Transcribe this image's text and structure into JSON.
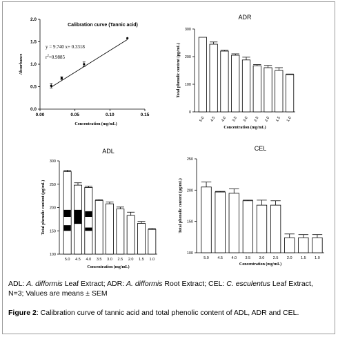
{
  "chart_data": [
    {
      "id": "cal",
      "type": "scatter",
      "title": "Calibration curve (Tannic acid)",
      "xlabel": "Concentration (mg/mL)",
      "ylabel": "Absorbance",
      "xlim": [
        0.0,
        0.15
      ],
      "ylim": [
        0.0,
        2.0
      ],
      "xticks": [
        "0.00",
        "0.05",
        "0.10",
        "0.15"
      ],
      "yticks": [
        "0.0",
        "0.5",
        "1.0",
        "1.5",
        "2.0"
      ],
      "x": [
        0.016,
        0.031,
        0.063,
        0.125
      ],
      "y": [
        0.52,
        0.69,
        1.0,
        1.58
      ],
      "err": [
        0.05,
        0.03,
        0.05,
        0.0
      ],
      "fit_line": [
        [
          0.016,
          0.49
        ],
        [
          0.125,
          1.55
        ]
      ],
      "annotation_1": "y = 9.740 x+ 0.3318",
      "annotation_2_base": "r",
      "annotation_2_sup": "2",
      "annotation_2_rest": "=0.9885"
    },
    {
      "id": "adr",
      "type": "bar",
      "title": "ADR",
      "xlabel": "Concentration (mg/mL)",
      "ylabel": "Total phenolic content (µg/mL)",
      "ylim": [
        0,
        300
      ],
      "yticks": [
        "0",
        "100",
        "200",
        "300"
      ],
      "categories": [
        "5.0",
        "4.5",
        "4.0",
        "3.5",
        "3.0",
        "2.5",
        "2.0",
        "1.5",
        "1.0"
      ],
      "values": [
        270,
        245,
        220,
        205,
        188,
        167,
        160,
        150,
        135
      ],
      "err": [
        0,
        8,
        3,
        5,
        10,
        4,
        8,
        10,
        2
      ]
    },
    {
      "id": "adl",
      "type": "bar",
      "title": "ADL",
      "xlabel": "Concentration (mg/mL)",
      "ylabel": "Total phenolic content (µg/mL)",
      "ylim": [
        100,
        300
      ],
      "yticks": [
        "100",
        "150",
        "200",
        "250",
        "300"
      ],
      "categories": [
        "5.0",
        "4.5",
        "4.0",
        "3.5",
        "3.0",
        "2.5",
        "2.0",
        "1.5",
        "1.0"
      ],
      "values": [
        277,
        248,
        243,
        215,
        208,
        197,
        183,
        166,
        153
      ],
      "err": [
        3,
        5,
        3,
        2,
        4,
        4,
        7,
        4,
        2
      ]
    },
    {
      "id": "cel",
      "type": "bar",
      "title": "CEL",
      "xlabel": "Concentration (mg/mL)",
      "ylabel": "Total phenolic content (µg/mL)",
      "ylim": [
        100,
        250
      ],
      "yticks": [
        "100",
        "150",
        "200",
        "250"
      ],
      "categories": [
        "5.0",
        "4.5",
        "4.0",
        "3.5",
        "3.0",
        "2.5",
        "2.0",
        "1.5",
        "1.0"
      ],
      "values": [
        205,
        197,
        195,
        183,
        176,
        176,
        124,
        124,
        124
      ],
      "err": [
        8,
        1,
        7,
        1,
        8,
        7,
        6,
        5,
        5
      ]
    }
  ],
  "legend_note": {
    "adl_abbr": "ADL: ",
    "adl_species": "A. difformis",
    "adl_rest": " Leaf Extract; ADR: ",
    "adr_species": "A. difformis",
    "adr_rest": " Root Extract; CEL: ",
    "cel_species": "C. esculentus",
    "cel_rest": " Leaf Extract, N=3; Values are means ± SEM"
  },
  "caption": {
    "label": "Figure 2",
    "text": ": Calibration curve of tannic acid and total phenolic content of ADL, ADR and CEL."
  }
}
